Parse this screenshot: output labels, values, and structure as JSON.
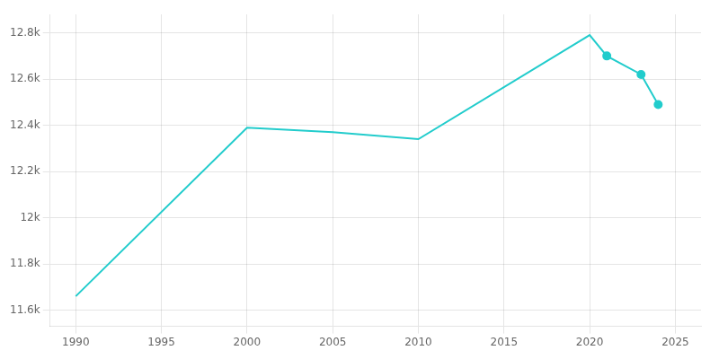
{
  "chart_data": {
    "type": "line",
    "x": [
      1990,
      2000,
      2005,
      2010,
      2020,
      2021,
      2023,
      2024
    ],
    "series": [
      {
        "values": [
          11660,
          12390,
          12370,
          12340,
          12790,
          12700,
          12620,
          12490
        ],
        "color": "#22CCCC",
        "marker": "none",
        "line_style": "solid"
      },
      {
        "type": "scatter",
        "values": [
          null,
          null,
          null,
          null,
          null,
          12700,
          12620,
          12490
        ],
        "color": "#22CCCC",
        "marker": "circle"
      }
    ],
    "xlim": [
      1988.5,
      2026.5
    ],
    "xticks": [
      1990,
      1995,
      2000,
      2005,
      2010,
      2015,
      2020,
      2025
    ],
    "ylim": [
      11530,
      12880
    ],
    "yticks": [
      {
        "value": 11600,
        "label": "11.6k"
      },
      {
        "value": 11800,
        "label": "11.8k"
      },
      {
        "value": 12000,
        "label": "12k"
      },
      {
        "value": 12200,
        "label": "12.2k"
      },
      {
        "value": 12400,
        "label": "12.4k"
      },
      {
        "value": 12600,
        "label": "12.6k"
      },
      {
        "value": 12800,
        "label": "12.8k"
      }
    ],
    "grid": true
  }
}
